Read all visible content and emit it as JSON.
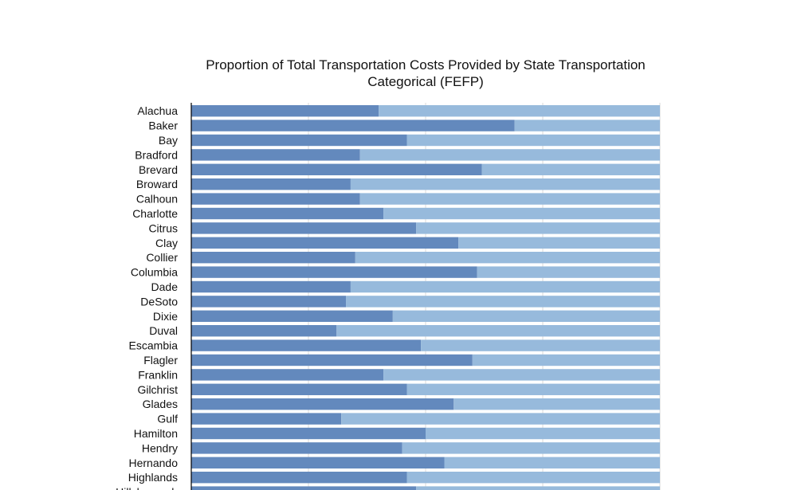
{
  "chart_data": {
    "type": "bar",
    "orientation": "horizontal",
    "stacked": true,
    "title": "Proportion of Total Transportation Costs Provided by State Transportation Categorical (FEFP)",
    "xlabel": "",
    "ylabel": "",
    "xlim": [
      0,
      1
    ],
    "grid": true,
    "colors": [
      "#6389bd",
      "#97badc"
    ],
    "categories": [
      "Alachua",
      "Baker",
      "Bay",
      "Bradford",
      "Brevard",
      "Broward",
      "Calhoun",
      "Charlotte",
      "Citrus",
      "Clay",
      "Collier",
      "Columbia",
      "Dade",
      "DeSoto",
      "Dixie",
      "Duval",
      "Escambia",
      "Flagler",
      "Franklin",
      "Gilchrist",
      "Glades",
      "Gulf",
      "Hamilton",
      "Hendry",
      "Hernando",
      "Highlands",
      "Hillsborough"
    ],
    "series": [
      {
        "values": [
          0.4,
          0.69,
          0.46,
          0.36,
          0.62,
          0.34,
          0.36,
          0.41,
          0.48,
          0.57,
          0.35,
          0.61,
          0.34,
          0.33,
          0.43,
          0.31,
          0.49,
          0.6,
          0.41,
          0.46,
          0.56,
          0.32,
          0.5,
          0.45,
          0.54,
          0.46,
          0.48
        ]
      },
      {
        "values": [
          0.6,
          0.31,
          0.54,
          0.64,
          0.38,
          0.66,
          0.64,
          0.59,
          0.52,
          0.43,
          0.65,
          0.39,
          0.66,
          0.67,
          0.57,
          0.69,
          0.51,
          0.4,
          0.59,
          0.54,
          0.44,
          0.68,
          0.5,
          0.55,
          0.46,
          0.54,
          0.52
        ]
      }
    ]
  }
}
